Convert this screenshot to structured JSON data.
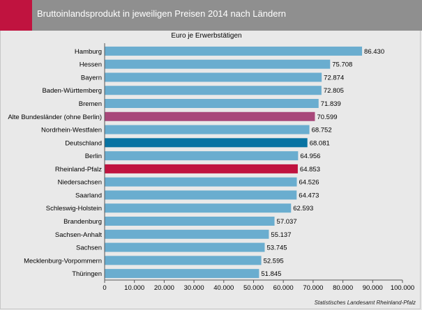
{
  "header": {
    "title": "Bruttoinlandsprodukt in jeweiligen Preisen 2014 nach Ländern"
  },
  "colors": {
    "bar_default": "#6aadcf",
    "bar_alte_bundeslaender": "#a8487a",
    "bar_deutschland": "#0873a2",
    "bar_rheinland_pfalz": "#c0133f",
    "header_bg": "#8f8f8f",
    "header_accent": "#c0133f"
  },
  "chart_data": {
    "type": "bar",
    "orientation": "horizontal",
    "title": "Euro je Erwerbstätigen",
    "xlim": [
      0,
      100000
    ],
    "grid": false,
    "x_ticks": [
      "0",
      "10.000",
      "20.000",
      "30.000",
      "40.000",
      "50.000",
      "60.000",
      "70.000",
      "80.000",
      "90.000",
      "100.000"
    ],
    "categories": [
      "Hamburg",
      "Hessen",
      "Bayern",
      "Baden-Württemberg",
      "Bremen",
      "Alte Bundesländer (ohne Berlin)",
      "Nordrhein-Westfalen",
      "Deutschland",
      "Berlin",
      "Rheinland-Pfalz",
      "Niedersachsen",
      "Saarland",
      "Schleswig-Holstein",
      "Brandenburg",
      "Sachsen-Anhalt",
      "Sachsen",
      "Mecklenburg-Vorpommern",
      "Thüringen"
    ],
    "values": [
      86430,
      75708,
      72874,
      72805,
      71839,
      70599,
      68752,
      68081,
      64956,
      64853,
      64526,
      64473,
      62593,
      57037,
      55137,
      53745,
      52595,
      51845
    ],
    "value_labels": [
      "86.430",
      "75.708",
      "72.874",
      "72.805",
      "71.839",
      "70.599",
      "68.752",
      "68.081",
      "64.956",
      "64.853",
      "64.526",
      "64.473",
      "62.593",
      "57.037",
      "55.137",
      "53.745",
      "52.595",
      "51.845"
    ],
    "highlights": {
      "Alte Bundesländer (ohne Berlin)": "bar_alte_bundeslaender",
      "Deutschland": "bar_deutschland",
      "Rheinland-Pfalz": "bar_rheinland_pfalz"
    },
    "source": "Statistisches Landesamt Rheinland-Pfalz"
  }
}
